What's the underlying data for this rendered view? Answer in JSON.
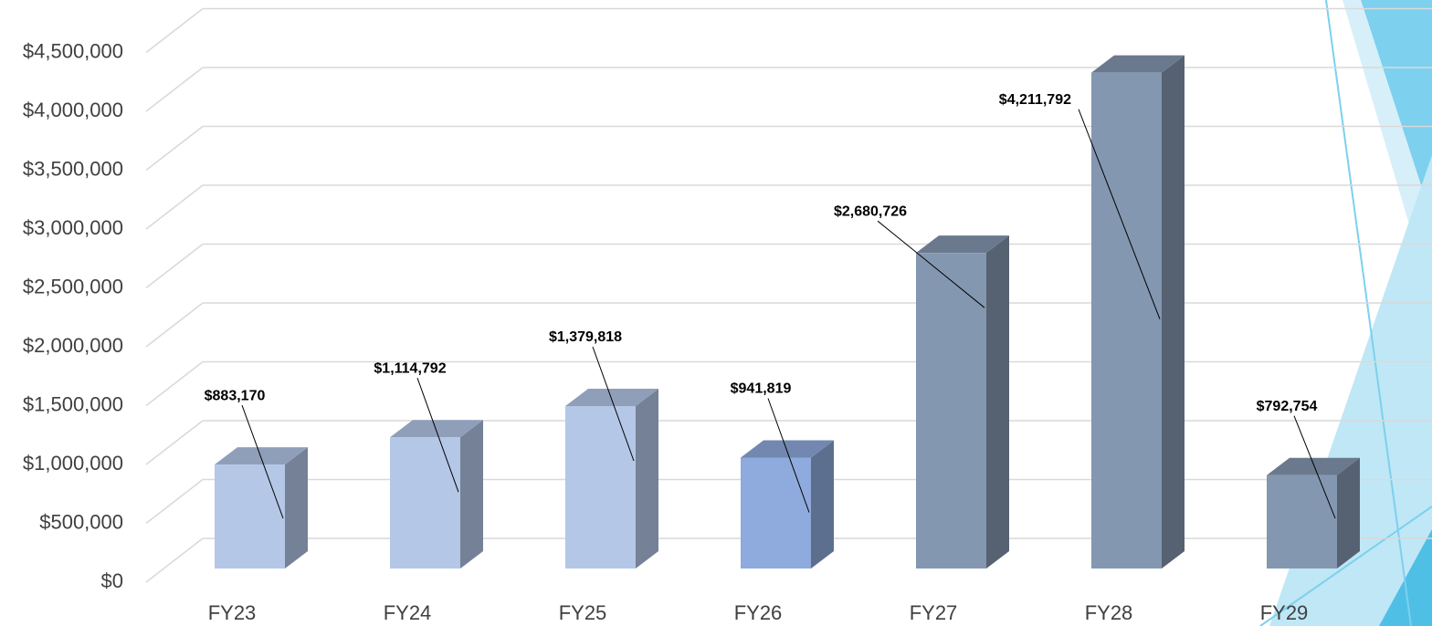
{
  "chart_data": {
    "type": "bar3d",
    "categories": [
      "FY23",
      "FY24",
      "FY25",
      "FY26",
      "FY27",
      "FY28",
      "FY29"
    ],
    "values": [
      883170,
      1114792,
      1379818,
      941819,
      2680726,
      4211792,
      792754
    ],
    "value_labels": [
      "$883,170",
      "$1,114,792",
      "$1,379,818",
      "$941,819",
      "$2,680,726",
      "$4,211,792",
      "$792,754"
    ],
    "colors": [
      "#b4c7e7",
      "#b4c7e7",
      "#b4c7e7",
      "#8faadc",
      "#8497b0",
      "#8497b0",
      "#8497b0"
    ],
    "ylim": [
      0,
      4500000
    ],
    "yticks": [
      {
        "value": 0,
        "label": "$0"
      },
      {
        "value": 500000,
        "label": "$500,000"
      },
      {
        "value": 1000000,
        "label": "$1,000,000"
      },
      {
        "value": 1500000,
        "label": "$1,500,000"
      },
      {
        "value": 2000000,
        "label": "$2,000,000"
      },
      {
        "value": 2500000,
        "label": "$2,500,000"
      },
      {
        "value": 3000000,
        "label": "$3,000,000"
      },
      {
        "value": 3500000,
        "label": "$3,500,000"
      },
      {
        "value": 4000000,
        "label": "$4,000,000"
      },
      {
        "value": 4500000,
        "label": "$4,500,000"
      }
    ],
    "grid": true
  }
}
